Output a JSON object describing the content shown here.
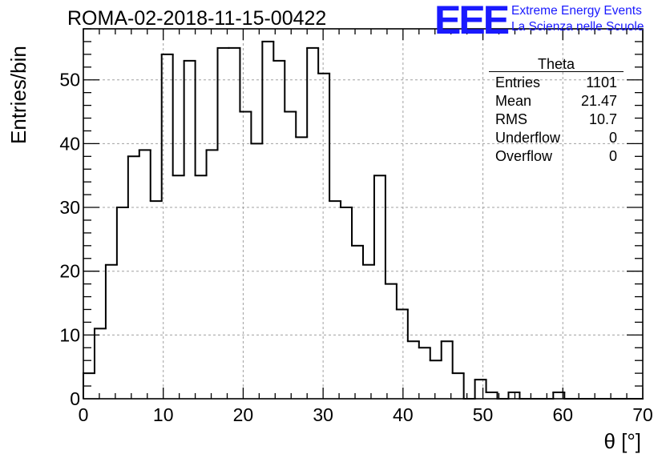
{
  "title": "ROMA-02-2018-11-15-00422",
  "logo": {
    "text": "EEE",
    "line1": "Extreme Energy Events",
    "line2": "La Scienza nelle Scuole",
    "color": "#1a1aff"
  },
  "stats": {
    "title": "Theta",
    "rows": [
      {
        "label": "Entries",
        "value": "1101"
      },
      {
        "label": "Mean",
        "value": "21.47"
      },
      {
        "label": "RMS",
        "value": "10.7"
      },
      {
        "label": "Underflow",
        "value": "0"
      },
      {
        "label": "Overflow",
        "value": "0"
      }
    ]
  },
  "chart_data": {
    "type": "bar",
    "style": "step-histogram",
    "title": "ROMA-02-2018-11-15-00422",
    "xlabel": "θ [°]",
    "ylabel": "Entries/bin",
    "xlim": [
      0,
      70
    ],
    "ylim": [
      0,
      58
    ],
    "grid": true,
    "bin_width": 1.4,
    "x_ticks": [
      0,
      10,
      20,
      30,
      40,
      50,
      60,
      70
    ],
    "y_ticks": [
      0,
      10,
      20,
      30,
      40,
      50
    ],
    "values": [
      4,
      11,
      21,
      30,
      38,
      39,
      31,
      54,
      35,
      53,
      35,
      39,
      55,
      55,
      45,
      40,
      56,
      53,
      45,
      41,
      55,
      51,
      31,
      30,
      24,
      21,
      35,
      18,
      14,
      9,
      8,
      6,
      9,
      4,
      0,
      3,
      1,
      0,
      1,
      0,
      0,
      0,
      1,
      0,
      0,
      0,
      0,
      0,
      0,
      0
    ]
  }
}
